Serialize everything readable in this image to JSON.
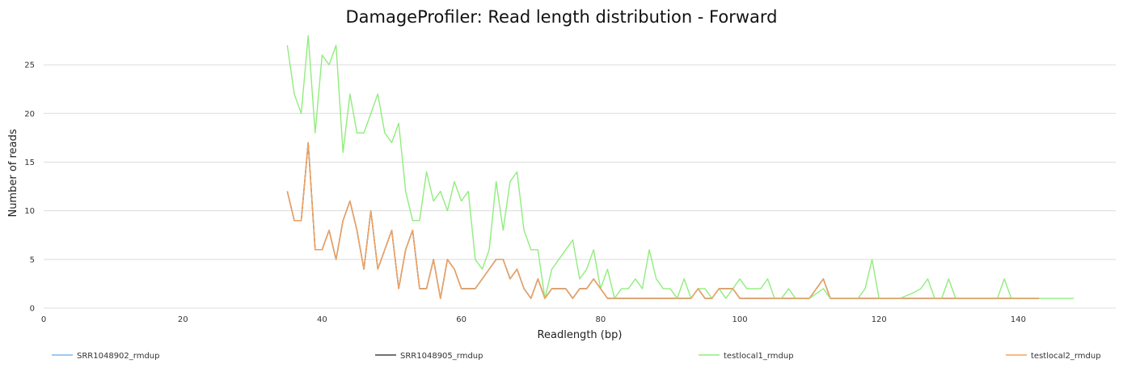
{
  "chart_data": {
    "type": "line",
    "title": "DamageProfiler: Read length distribution - Forward",
    "xlabel": "Readlength (bp)",
    "ylabel": "Number of reads",
    "xlim": [
      0,
      154
    ],
    "ylim": [
      0,
      28.5
    ],
    "x_ticks": [
      0,
      20,
      40,
      60,
      80,
      100,
      120,
      140
    ],
    "y_ticks": [
      0,
      5,
      10,
      15,
      20,
      25
    ],
    "grid": "horizontal",
    "legend_position": "bottom",
    "series": [
      {
        "name": "SRR1048902_rmdup",
        "color": "#7cb5ec",
        "x": [
          35,
          36,
          37,
          38,
          39,
          40,
          41,
          42,
          43,
          44,
          45,
          46,
          47,
          48,
          49,
          50,
          51,
          52,
          53,
          54,
          55,
          56,
          57,
          58,
          59,
          60,
          61,
          62,
          63,
          64,
          65,
          66,
          67,
          68,
          69,
          70,
          71,
          72,
          73,
          74,
          75,
          76,
          77,
          78,
          79,
          80,
          81,
          82,
          83,
          84,
          85,
          86,
          87,
          88,
          89,
          90,
          91,
          92,
          93,
          94,
          95,
          96,
          97,
          98,
          99,
          100,
          101,
          102,
          103,
          104,
          105,
          106,
          107,
          108,
          109,
          110,
          111,
          112,
          113,
          114,
          115,
          116,
          117,
          118,
          119,
          120,
          121,
          122,
          123,
          124,
          125,
          126,
          127,
          128,
          129,
          130,
          131,
          132,
          133,
          134,
          135,
          136,
          137,
          138,
          139,
          140,
          141,
          142,
          143
        ],
        "y": [
          12,
          9,
          9,
          17,
          6,
          6,
          8,
          5,
          9,
          11,
          8,
          4,
          10,
          4,
          6,
          8,
          2,
          6,
          8,
          2,
          2,
          5,
          1,
          5,
          4,
          2,
          2,
          2,
          3,
          4,
          5,
          5,
          3,
          4,
          2,
          1,
          3,
          1,
          2,
          2,
          2,
          1,
          2,
          2,
          3,
          2,
          1,
          1,
          1,
          1,
          1,
          1,
          1,
          1,
          1,
          1,
          1,
          1,
          1,
          2,
          1,
          1,
          2,
          2,
          2,
          1,
          1,
          1,
          1,
          1,
          1,
          1,
          1,
          1,
          1,
          1,
          2,
          3,
          1,
          1,
          1,
          1,
          1,
          1,
          1,
          1,
          1,
          1,
          1,
          1,
          1,
          1,
          1,
          1,
          1,
          1,
          1,
          1,
          1,
          1,
          1,
          1,
          1,
          1,
          1,
          1,
          1,
          1,
          1
        ]
      },
      {
        "name": "SRR1048905_rmdup",
        "color": "#434348",
        "x": [
          35,
          36,
          37,
          38,
          39,
          40,
          41,
          42,
          43,
          44,
          45,
          46,
          47,
          48,
          49,
          50,
          51,
          52,
          53,
          54,
          55,
          56,
          57,
          58,
          59,
          60,
          61,
          62,
          63,
          64,
          65,
          66,
          67,
          68,
          69,
          70,
          71,
          72,
          73,
          74,
          75,
          76,
          77,
          78,
          79,
          80,
          81,
          82,
          83,
          84,
          85,
          86,
          87,
          88,
          89,
          90,
          91,
          92,
          93,
          94,
          95,
          96,
          97,
          98,
          99,
          100,
          101,
          102,
          103,
          104,
          105,
          106,
          107,
          108,
          109,
          110,
          111,
          112,
          113,
          114,
          115,
          116,
          117,
          118,
          119,
          120,
          121,
          122,
          123,
          124,
          125,
          126,
          127,
          128,
          129,
          130,
          131,
          132,
          133,
          134,
          135,
          136,
          137,
          138,
          139,
          140,
          141,
          142,
          143
        ],
        "y": [
          12,
          9,
          9,
          17,
          6,
          6,
          8,
          5,
          9,
          11,
          8,
          4,
          10,
          4,
          6,
          8,
          2,
          6,
          8,
          2,
          2,
          5,
          1,
          5,
          4,
          2,
          2,
          2,
          3,
          4,
          5,
          5,
          3,
          4,
          2,
          1,
          3,
          1,
          2,
          2,
          2,
          1,
          2,
          2,
          3,
          2,
          1,
          1,
          1,
          1,
          1,
          1,
          1,
          1,
          1,
          1,
          1,
          1,
          1,
          2,
          1,
          1,
          2,
          2,
          2,
          1,
          1,
          1,
          1,
          1,
          1,
          1,
          1,
          1,
          1,
          1,
          2,
          3,
          1,
          1,
          1,
          1,
          1,
          1,
          1,
          1,
          1,
          1,
          1,
          1,
          1,
          1,
          1,
          1,
          1,
          1,
          1,
          1,
          1,
          1,
          1,
          1,
          1,
          1,
          1,
          1,
          1,
          1,
          1
        ]
      },
      {
        "name": "testlocal1_rmdup",
        "color": "#90ed7d",
        "x": [
          35,
          36,
          37,
          38,
          39,
          40,
          41,
          42,
          43,
          44,
          45,
          46,
          47,
          48,
          49,
          50,
          51,
          52,
          53,
          54,
          55,
          56,
          57,
          58,
          59,
          60,
          61,
          62,
          63,
          64,
          65,
          66,
          67,
          68,
          69,
          70,
          71,
          72,
          73,
          74,
          75,
          76,
          77,
          78,
          79,
          80,
          81,
          82,
          83,
          84,
          85,
          86,
          87,
          88,
          89,
          90,
          91,
          92,
          93,
          94,
          95,
          96,
          97,
          98,
          99,
          100,
          101,
          102,
          103,
          104,
          105,
          106,
          107,
          108,
          109,
          110,
          111,
          112,
          113,
          114,
          115,
          116,
          117,
          118,
          119,
          120,
          121,
          122,
          123,
          124,
          125,
          126,
          127,
          128,
          129,
          130,
          131,
          132,
          133,
          134,
          135,
          136,
          137,
          138,
          139,
          140,
          141,
          142,
          143,
          144,
          145,
          146,
          147,
          148
        ],
        "y": [
          27,
          22,
          20,
          28,
          18,
          26,
          25,
          27,
          16,
          22,
          18,
          18,
          20,
          22,
          18,
          17,
          19,
          12,
          9,
          9,
          14,
          11,
          12,
          10,
          13,
          11,
          12,
          5,
          4,
          6,
          13,
          8,
          13,
          14,
          8,
          6,
          6,
          1,
          4,
          5,
          6,
          7,
          3,
          4,
          6,
          2,
          4,
          1,
          2,
          2,
          3,
          2,
          6,
          3,
          2,
          2,
          1,
          3,
          1,
          2,
          2,
          1,
          2,
          1,
          2,
          3,
          2,
          2,
          2,
          3,
          1,
          1,
          2,
          1,
          1,
          1,
          1.5,
          2,
          1,
          1,
          1,
          1,
          1,
          2,
          5,
          1,
          1,
          1,
          1,
          1.3,
          1.6,
          2,
          3,
          1,
          1,
          3,
          1,
          1,
          1,
          1,
          1,
          1,
          1,
          3,
          1,
          1,
          1,
          1,
          1,
          1,
          1,
          1,
          1,
          1
        ]
      },
      {
        "name": "testlocal2_rmdup",
        "color": "#f7a35c",
        "x": [
          35,
          36,
          37,
          38,
          39,
          40,
          41,
          42,
          43,
          44,
          45,
          46,
          47,
          48,
          49,
          50,
          51,
          52,
          53,
          54,
          55,
          56,
          57,
          58,
          59,
          60,
          61,
          62,
          63,
          64,
          65,
          66,
          67,
          68,
          69,
          70,
          71,
          72,
          73,
          74,
          75,
          76,
          77,
          78,
          79,
          80,
          81,
          82,
          83,
          84,
          85,
          86,
          87,
          88,
          89,
          90,
          91,
          92,
          93,
          94,
          95,
          96,
          97,
          98,
          99,
          100,
          101,
          102,
          103,
          104,
          105,
          106,
          107,
          108,
          109,
          110,
          111,
          112,
          113,
          114,
          115,
          116,
          117,
          118,
          119,
          120,
          121,
          122,
          123,
          124,
          125,
          126,
          127,
          128,
          129,
          130,
          131,
          132,
          133,
          134,
          135,
          136,
          137,
          138,
          139,
          140,
          141,
          142,
          143
        ],
        "y": [
          12,
          9,
          9,
          17,
          6,
          6,
          8,
          5,
          9,
          11,
          8,
          4,
          10,
          4,
          6,
          8,
          2,
          6,
          8,
          2,
          2,
          5,
          1,
          5,
          4,
          2,
          2,
          2,
          3,
          4,
          5,
          5,
          3,
          4,
          2,
          1,
          3,
          1,
          2,
          2,
          2,
          1,
          2,
          2,
          3,
          2,
          1,
          1,
          1,
          1,
          1,
          1,
          1,
          1,
          1,
          1,
          1,
          1,
          1,
          2,
          1,
          1,
          2,
          2,
          2,
          1,
          1,
          1,
          1,
          1,
          1,
          1,
          1,
          1,
          1,
          1,
          2,
          3,
          1,
          1,
          1,
          1,
          1,
          1,
          1,
          1,
          1,
          1,
          1,
          1,
          1,
          1,
          1,
          1,
          1,
          1,
          1,
          1,
          1,
          1,
          1,
          1,
          1,
          1,
          1,
          1,
          1,
          1,
          1
        ]
      }
    ]
  }
}
